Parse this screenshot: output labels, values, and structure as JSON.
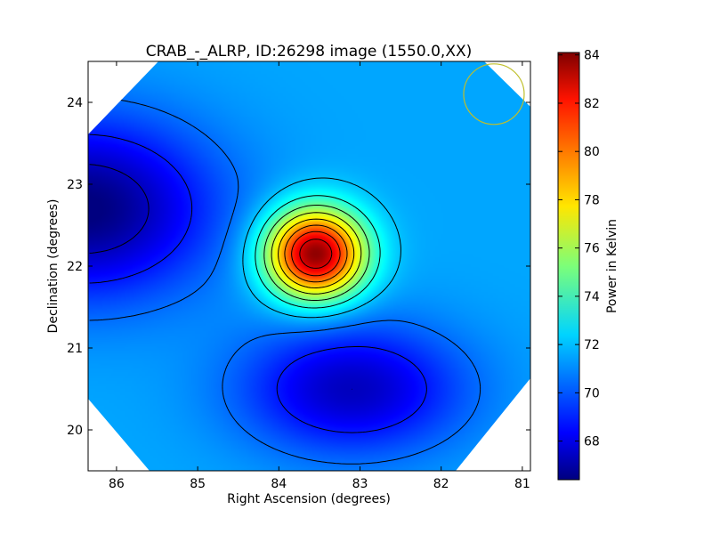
{
  "chart_data": {
    "type": "heatmap",
    "title": "CRAB_-_ALRP, ID:26298 image (1550.0,XX)",
    "xlabel": "Right Ascension (degrees)",
    "ylabel": "Declination (degrees)",
    "colorbar_label": "Power in Kelvin",
    "xlim": [
      86.35,
      80.9
    ],
    "ylim": [
      19.5,
      24.5
    ],
    "x_ticks": [
      86,
      85,
      84,
      83,
      82,
      81
    ],
    "y_ticks": [
      20,
      21,
      22,
      23,
      24
    ],
    "colorbar_range": [
      66.4,
      84.1
    ],
    "colorbar_ticks": [
      68,
      70,
      72,
      74,
      76,
      78,
      80,
      82,
      84
    ],
    "colormap": "jet",
    "background_level": 71.5,
    "sources": [
      {
        "ra": 83.55,
        "dec": 22.15,
        "peak": 84.0,
        "sigma_ra": 0.42,
        "sigma_dec": 0.38,
        "role": "bright source"
      },
      {
        "ra": 86.4,
        "dec": 22.7,
        "peak": -5.2,
        "sigma_ra": 1.1,
        "sigma_dec": 0.75,
        "role": "cold region west"
      },
      {
        "ra": 83.1,
        "dec": 20.5,
        "peak": -4.0,
        "sigma_ra": 0.95,
        "sigma_dec": 0.55,
        "role": "cold region south"
      }
    ],
    "contours": "black lines",
    "beam_circle": {
      "ra": 81.35,
      "dec": 24.1,
      "color": "#bfbf2a"
    },
    "grid": false,
    "legend": "none"
  }
}
